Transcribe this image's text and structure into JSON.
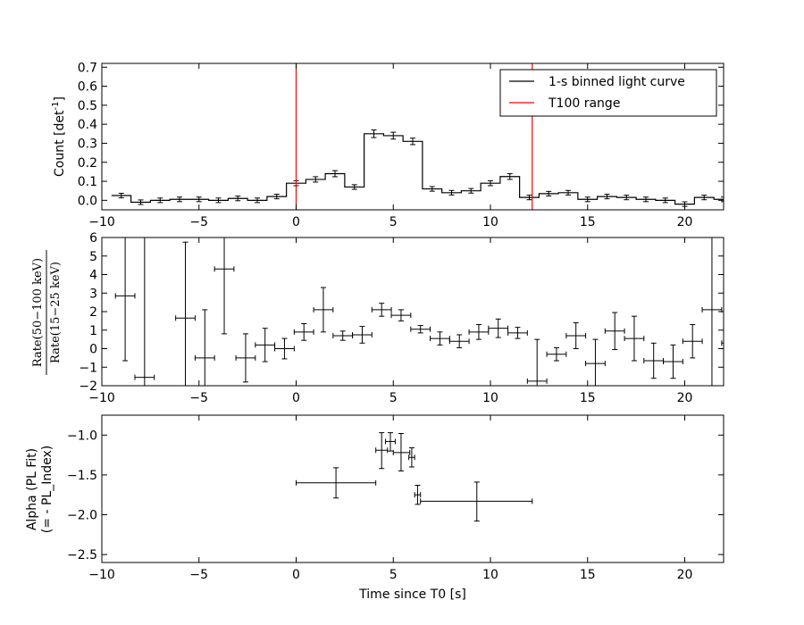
{
  "chart_data": [
    {
      "type": "line",
      "panel": "top",
      "ylabel_text": "Count [det",
      "ylabel_sup": "-1",
      "ylabel_close": "]",
      "xlim": [
        -10,
        22
      ],
      "ylim": [
        -0.05,
        0.72
      ],
      "xticks": [
        -10,
        -5,
        0,
        5,
        10,
        15,
        20
      ],
      "xticklabels": [
        "−10",
        "−5",
        "0",
        "5",
        "10",
        "15",
        "20"
      ],
      "yticks": [
        0.0,
        0.1,
        0.2,
        0.3,
        0.4,
        0.5,
        0.6,
        0.7
      ],
      "yticklabels": [
        "0.0",
        "0.1",
        "0.2",
        "0.3",
        "0.4",
        "0.5",
        "0.6",
        "0.7"
      ],
      "legend": {
        "position": "top-right",
        "entries": [
          "1-s binned light curve",
          "T100 range"
        ]
      },
      "bin_start": -9.5,
      "bin_width": 1.0,
      "values": [
        0.025,
        -0.01,
        0.0,
        0.005,
        0.005,
        0.0,
        0.01,
        0.0,
        0.02,
        0.09,
        0.11,
        0.14,
        0.07,
        0.35,
        0.34,
        0.31,
        0.06,
        0.04,
        0.05,
        0.09,
        0.125,
        0.015,
        0.035,
        0.04,
        0.005,
        0.02,
        0.015,
        0.005,
        0.0,
        -0.02,
        0.015,
        0.005
      ],
      "errors": [
        0.012,
        0.012,
        0.012,
        0.012,
        0.012,
        0.012,
        0.012,
        0.012,
        0.012,
        0.013,
        0.014,
        0.016,
        0.012,
        0.02,
        0.018,
        0.017,
        0.012,
        0.012,
        0.012,
        0.013,
        0.015,
        0.012,
        0.012,
        0.012,
        0.012,
        0.012,
        0.012,
        0.012,
        0.012,
        0.012,
        0.012,
        0.012
      ],
      "t100_range": [
        0.0,
        12.15
      ],
      "colors": {
        "curve": "#000000",
        "t100": "#ff0000"
      }
    },
    {
      "type": "scatter",
      "panel": "middle",
      "ylabel_numerator": "Rate(50−100 keV)",
      "ylabel_denominator": "Rate(15−25 keV)",
      "xlim": [
        -10,
        22
      ],
      "ylim": [
        -2,
        6
      ],
      "xticks": [
        -10,
        -5,
        0,
        5,
        10,
        15,
        20
      ],
      "xticklabels": [
        "−10",
        "−5",
        "0",
        "5",
        "10",
        "15",
        "20"
      ],
      "yticks": [
        -2,
        -1,
        0,
        1,
        2,
        3,
        4,
        5,
        6
      ],
      "yticklabels": [
        "−2",
        "−1",
        "0",
        "1",
        "2",
        "3",
        "4",
        "5",
        "6"
      ],
      "points": [
        {
          "x": -8.8,
          "y": 2.85,
          "xerr": 0.5,
          "yerr": 3.5
        },
        {
          "x": -7.8,
          "y": -1.55,
          "xerr": 0.5,
          "yerr": 9.0
        },
        {
          "x": -5.7,
          "y": 1.65,
          "xerr": 0.5,
          "yerr": 4.1
        },
        {
          "x": -4.7,
          "y": -0.5,
          "xerr": 0.5,
          "yerr": 2.6
        },
        {
          "x": -3.7,
          "y": 4.3,
          "xerr": 0.5,
          "yerr": 3.5
        },
        {
          "x": -2.6,
          "y": -0.5,
          "xerr": 0.5,
          "yerr": 1.3
        },
        {
          "x": -1.6,
          "y": 0.2,
          "xerr": 0.5,
          "yerr": 0.9
        },
        {
          "x": -0.6,
          "y": 0.0,
          "xerr": 0.5,
          "yerr": 0.55
        },
        {
          "x": 0.4,
          "y": 0.9,
          "xerr": 0.5,
          "yerr": 0.45
        },
        {
          "x": 1.4,
          "y": 2.1,
          "xerr": 0.5,
          "yerr": 1.2
        },
        {
          "x": 2.4,
          "y": 0.7,
          "xerr": 0.5,
          "yerr": 0.25
        },
        {
          "x": 3.4,
          "y": 0.75,
          "xerr": 0.5,
          "yerr": 0.45
        },
        {
          "x": 4.4,
          "y": 2.1,
          "xerr": 0.5,
          "yerr": 0.35
        },
        {
          "x": 5.4,
          "y": 1.8,
          "xerr": 0.5,
          "yerr": 0.3
        },
        {
          "x": 6.4,
          "y": 1.05,
          "xerr": 0.5,
          "yerr": 0.2
        },
        {
          "x": 7.4,
          "y": 0.55,
          "xerr": 0.5,
          "yerr": 0.35
        },
        {
          "x": 8.4,
          "y": 0.4,
          "xerr": 0.5,
          "yerr": 0.35
        },
        {
          "x": 9.4,
          "y": 0.9,
          "xerr": 0.5,
          "yerr": 0.4
        },
        {
          "x": 10.4,
          "y": 1.1,
          "xerr": 0.5,
          "yerr": 0.5
        },
        {
          "x": 11.4,
          "y": 0.85,
          "xerr": 0.5,
          "yerr": 0.3
        },
        {
          "x": 12.4,
          "y": -1.75,
          "xerr": 0.5,
          "yerr": 2.25
        },
        {
          "x": 13.4,
          "y": -0.3,
          "xerr": 0.5,
          "yerr": 0.35
        },
        {
          "x": 14.4,
          "y": 0.7,
          "xerr": 0.5,
          "yerr": 0.7
        },
        {
          "x": 15.4,
          "y": -0.8,
          "xerr": 0.5,
          "yerr": 1.3
        },
        {
          "x": 16.4,
          "y": 0.95,
          "xerr": 0.5,
          "yerr": 1.0
        },
        {
          "x": 17.4,
          "y": 0.55,
          "xerr": 0.5,
          "yerr": 1.2
        },
        {
          "x": 18.4,
          "y": -0.65,
          "xerr": 0.5,
          "yerr": 0.95
        },
        {
          "x": 19.4,
          "y": -0.7,
          "xerr": 0.5,
          "yerr": 0.9
        },
        {
          "x": 20.4,
          "y": 0.4,
          "xerr": 0.5,
          "yerr": 0.9
        },
        {
          "x": 21.4,
          "y": 2.1,
          "xerr": 0.5,
          "yerr": 9.0
        },
        {
          "x": 22.4,
          "y": 0.3,
          "xerr": 0.5,
          "yerr": 0.3
        }
      ]
    },
    {
      "type": "scatter",
      "panel": "bottom",
      "ylabel_line1": "Alpha (PL Fit)",
      "ylabel_line2": "(= - PL_Index)",
      "xlabel": "Time since T0 [s]",
      "xlim": [
        -10,
        22
      ],
      "ylim": [
        -2.6,
        -0.75
      ],
      "xticks": [
        -10,
        -5,
        0,
        5,
        10,
        15,
        20
      ],
      "xticklabels": [
        "−10",
        "−5",
        "0",
        "5",
        "10",
        "15",
        "20"
      ],
      "yticks": [
        -2.5,
        -2.0,
        -1.5,
        -1.0
      ],
      "yticklabels": [
        "−2.5",
        "−2.0",
        "−1.5",
        "−1.0"
      ],
      "points": [
        {
          "x": 2.05,
          "y": -1.6,
          "xlo": 0.0,
          "xhi": 4.1,
          "ylo": -1.79,
          "yhi": -1.41
        },
        {
          "x": 4.4,
          "y": -1.19,
          "xlo": 4.1,
          "xhi": 4.7,
          "ylo": -1.42,
          "yhi": -0.97
        },
        {
          "x": 4.85,
          "y": -1.08,
          "xlo": 4.6,
          "xhi": 5.1,
          "ylo": -1.2,
          "yhi": -0.97
        },
        {
          "x": 5.4,
          "y": -1.22,
          "xlo": 5.0,
          "xhi": 5.85,
          "ylo": -1.45,
          "yhi": -0.98
        },
        {
          "x": 5.95,
          "y": -1.28,
          "xlo": 5.8,
          "xhi": 6.1,
          "ylo": -1.4,
          "yhi": -1.16
        },
        {
          "x": 6.25,
          "y": -1.75,
          "xlo": 6.1,
          "xhi": 6.4,
          "ylo": -1.87,
          "yhi": -1.63
        },
        {
          "x": 9.3,
          "y": -1.83,
          "xlo": 6.4,
          "xhi": 12.15,
          "ylo": -2.08,
          "yhi": -1.59
        }
      ]
    }
  ]
}
